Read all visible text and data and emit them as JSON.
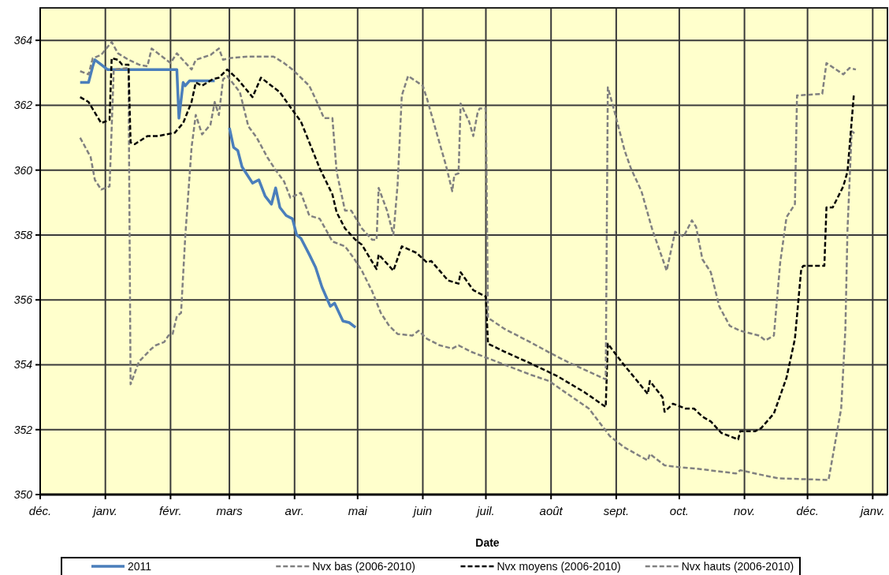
{
  "chart_data": {
    "type": "line",
    "xlabel": "Date",
    "legend": "bottom",
    "grid": true,
    "xlim": [
      "2010-12-01",
      "2012-01-08"
    ],
    "xticks": [
      {
        "value": "2010-12-01",
        "label": "déc."
      },
      {
        "value": "2011-01-01",
        "label": "janv."
      },
      {
        "value": "2011-02-01",
        "label": "févr."
      },
      {
        "value": "2011-03-01",
        "label": "mars"
      },
      {
        "value": "2011-04-01",
        "label": "avr."
      },
      {
        "value": "2011-05-01",
        "label": "mai"
      },
      {
        "value": "2011-06-01",
        "label": "juin"
      },
      {
        "value": "2011-07-01",
        "label": "juil."
      },
      {
        "value": "2011-08-01",
        "label": "août"
      },
      {
        "value": "2011-09-01",
        "label": "sept."
      },
      {
        "value": "2011-10-01",
        "label": "oct."
      },
      {
        "value": "2011-11-01",
        "label": "nov."
      },
      {
        "value": "2011-12-01",
        "label": "déc."
      },
      {
        "value": "2012-01-01",
        "label": "janv."
      }
    ],
    "ylim": [
      350,
      365
    ],
    "yticks": [
      350,
      352,
      354,
      356,
      358,
      360,
      362,
      364
    ],
    "series": [
      {
        "name": "2011",
        "color": "#4a7ebb",
        "line_style": "solid",
        "x": [
          "2010-12-20",
          "2010-12-24",
          "2010-12-26",
          "2010-12-27",
          "2010-12-30",
          "2011-01-02",
          "2011-02-04",
          "2011-02-05",
          "2011-02-07",
          "2011-02-08",
          "2011-02-10",
          "2011-02-22",
          "2011-02-25",
          "2011-03-01",
          "2011-03-03",
          "2011-03-05",
          "2011-03-07",
          "2011-03-09",
          "2011-03-12",
          "2011-03-15",
          "2011-03-18",
          "2011-03-21",
          "2011-03-23",
          "2011-03-25",
          "2011-03-28",
          "2011-03-31",
          "2011-04-02",
          "2011-04-04",
          "2011-04-08",
          "2011-04-11",
          "2011-04-14",
          "2011-04-18",
          "2011-04-20",
          "2011-04-24",
          "2011-04-27",
          "2011-04-30"
        ],
        "values": [
          362.7,
          362.7,
          363.2,
          363.4,
          363.25,
          363.1,
          363.1,
          361.6,
          362.7,
          362.6,
          362.75,
          362.75,
          null,
          361.3,
          360.7,
          360.6,
          360.1,
          359.9,
          359.6,
          359.7,
          359.2,
          358.95,
          359.45,
          358.85,
          358.6,
          358.5,
          358.0,
          357.9,
          357.4,
          357.0,
          356.4,
          355.8,
          355.9,
          355.35,
          355.3,
          355.15
        ]
      },
      {
        "name": "Nvx bas (2006-2010)",
        "color": "#808080",
        "line_style": "dashed",
        "x": [
          "2010-12-20",
          "2010-12-25",
          "2010-12-27",
          "2010-12-30",
          "2011-01-03",
          "2011-01-05",
          "2011-01-12",
          "2011-01-13",
          "2011-01-17",
          "2011-01-23",
          "2011-01-25",
          "2011-01-29",
          "2011-01-31",
          "2011-02-02",
          "2011-02-04",
          "2011-02-06",
          "2011-02-08",
          "2011-02-11",
          "2011-02-13",
          "2011-02-16",
          "2011-02-20",
          "2011-02-22",
          "2011-02-24",
          "2011-02-26",
          "2011-02-28",
          "2011-03-06",
          "2011-03-10",
          "2011-03-14",
          "2011-03-19",
          "2011-03-23",
          "2011-03-27",
          "2011-03-30",
          "2011-04-04",
          "2011-04-08",
          "2011-04-13",
          "2011-04-19",
          "2011-04-25",
          "2011-04-29",
          "2011-05-03",
          "2011-05-08",
          "2011-05-12",
          "2011-05-16",
          "2011-05-20",
          "2011-05-27",
          "2011-05-30",
          "2011-06-03",
          "2011-06-09",
          "2011-06-15",
          "2011-06-18",
          "2011-06-24",
          "2011-07-02",
          "2011-07-10",
          "2011-07-22",
          "2011-07-31",
          "2011-08-10",
          "2011-08-19",
          "2011-08-29",
          "2011-09-05",
          "2011-09-16",
          "2011-09-17",
          "2011-09-24",
          "2011-09-30",
          "2011-10-09",
          "2011-10-28",
          "2011-10-30",
          "2011-11-06",
          "2011-11-17",
          "2011-12-11",
          "2011-12-17",
          "2011-12-19",
          "2011-12-20",
          "2011-12-22",
          "2011-12-24"
        ],
        "values": [
          361.0,
          360.4,
          359.7,
          359.4,
          359.5,
          363.1,
          363.15,
          353.4,
          354.1,
          354.5,
          354.6,
          354.7,
          354.9,
          354.95,
          355.5,
          355.6,
          357.95,
          360.7,
          361.7,
          361.1,
          361.4,
          362.1,
          361.7,
          362.8,
          362.9,
          362.4,
          361.35,
          361.0,
          360.4,
          360.0,
          359.65,
          359.15,
          359.3,
          358.6,
          358.5,
          357.8,
          357.65,
          357.3,
          356.9,
          356.25,
          355.6,
          355.2,
          354.95,
          354.9,
          355.05,
          354.8,
          354.6,
          354.5,
          354.6,
          354.4,
          354.2,
          354.0,
          353.7,
          353.5,
          353.05,
          352.65,
          351.8,
          351.45,
          351.05,
          351.25,
          350.9,
          350.85,
          350.8,
          350.65,
          350.75,
          350.65,
          350.5,
          350.45,
          352.65,
          355.1,
          358.15,
          361.2,
          361.1
        ]
      },
      {
        "name": "Nvx moyens (2006-2010)",
        "color": "#000000",
        "line_style": "dashed",
        "x": [
          "2010-12-20",
          "2010-12-24",
          "2010-12-30",
          "2011-01-03",
          "2011-01-04",
          "2011-01-07",
          "2011-01-09",
          "2011-01-12",
          "2011-01-13",
          "2011-01-15",
          "2011-01-21",
          "2011-01-26",
          "2011-02-03",
          "2011-02-07",
          "2011-02-11",
          "2011-02-13",
          "2011-02-16",
          "2011-02-21",
          "2011-02-24",
          "2011-02-28",
          "2011-03-05",
          "2011-03-12",
          "2011-03-16",
          "2011-03-20",
          "2011-03-25",
          "2011-03-31",
          "2011-04-04",
          "2011-04-13",
          "2011-04-19",
          "2011-04-21",
          "2011-04-25",
          "2011-04-30",
          "2011-05-03",
          "2011-05-10",
          "2011-05-11",
          "2011-05-18",
          "2011-05-22",
          "2011-05-29",
          "2011-06-03",
          "2011-06-05",
          "2011-06-13",
          "2011-06-18",
          "2011-06-19",
          "2011-06-25",
          "2011-07-01",
          "2011-07-02",
          "2011-07-10",
          "2011-07-22",
          "2011-08-04",
          "2011-08-17",
          "2011-08-27",
          "2011-08-28",
          "2011-09-04",
          "2011-09-11",
          "2011-09-16",
          "2011-09-17",
          "2011-09-23",
          "2011-09-24",
          "2011-09-28",
          "2011-10-04",
          "2011-10-08",
          "2011-10-12",
          "2011-10-16",
          "2011-10-21",
          "2011-10-29",
          "2011-10-30",
          "2011-11-06",
          "2011-11-09",
          "2011-11-15",
          "2011-11-21",
          "2011-11-25",
          "2011-11-28",
          "2011-11-29",
          "2011-12-09",
          "2011-12-10",
          "2011-12-13",
          "2011-12-18",
          "2011-12-20",
          "2011-12-23"
        ],
        "values": [
          362.25,
          362.1,
          361.45,
          361.55,
          363.45,
          363.4,
          363.25,
          363.25,
          360.85,
          360.8,
          361.05,
          361.05,
          361.15,
          361.45,
          362.1,
          362.7,
          362.6,
          362.8,
          362.85,
          363.1,
          362.8,
          362.25,
          362.85,
          362.65,
          362.4,
          361.85,
          361.5,
          360.05,
          359.25,
          358.7,
          358.2,
          357.85,
          357.7,
          356.95,
          357.4,
          356.9,
          357.65,
          357.45,
          357.15,
          357.2,
          356.6,
          356.5,
          356.85,
          356.3,
          356.1,
          354.65,
          354.4,
          354.05,
          353.65,
          353.15,
          352.7,
          354.65,
          354.05,
          353.5,
          353.1,
          353.5,
          353.0,
          352.55,
          352.8,
          352.65,
          352.65,
          352.4,
          352.25,
          351.9,
          351.7,
          351.95,
          351.95,
          352.05,
          352.5,
          353.6,
          354.8,
          356.95,
          357.05,
          357.05,
          358.85,
          358.85,
          359.5,
          359.95,
          362.3
        ]
      },
      {
        "name": "Nvx hauts (2006-2010)",
        "color": "#808080",
        "line_style": "dashed",
        "x": [
          "2010-12-20",
          "2010-12-24",
          "2010-12-26",
          "2010-12-30",
          "2011-01-04",
          "2011-01-07",
          "2011-01-12",
          "2011-01-17",
          "2011-01-21",
          "2011-01-23",
          "2011-01-27",
          "2011-02-01",
          "2011-02-04",
          "2011-02-11",
          "2011-02-13",
          "2011-02-20",
          "2011-02-24",
          "2011-02-26",
          "2011-03-01",
          "2011-03-10",
          "2011-03-22",
          "2011-03-27",
          "2011-03-31",
          "2011-04-08",
          "2011-04-12",
          "2011-04-15",
          "2011-04-19",
          "2011-04-21",
          "2011-04-25",
          "2011-04-28",
          "2011-05-03",
          "2011-05-08",
          "2011-05-10",
          "2011-05-11",
          "2011-05-15",
          "2011-05-18",
          "2011-05-20",
          "2011-05-22",
          "2011-05-25",
          "2011-06-01",
          "2011-06-03",
          "2011-06-08",
          "2011-06-12",
          "2011-06-15",
          "2011-06-16",
          "2011-06-18",
          "2011-06-19",
          "2011-06-23",
          "2011-06-25",
          "2011-06-27",
          "2011-06-28",
          "2011-07-01",
          "2011-07-02",
          "2011-07-10",
          "2011-07-16",
          "2011-07-22",
          "2011-08-01",
          "2011-08-10",
          "2011-08-22",
          "2011-08-27",
          "2011-08-28",
          "2011-08-31",
          "2011-09-05",
          "2011-09-08",
          "2011-09-13",
          "2011-09-18",
          "2011-09-25",
          "2011-09-29",
          "2011-10-03",
          "2011-10-07",
          "2011-10-09",
          "2011-10-12",
          "2011-10-16",
          "2011-10-20",
          "2011-10-25",
          "2011-10-30",
          "2011-11-08",
          "2011-11-11",
          "2011-11-15",
          "2011-11-18",
          "2011-11-21",
          "2011-11-25",
          "2011-11-26",
          "2011-12-08",
          "2011-12-10",
          "2011-12-18",
          "2011-12-21",
          "2011-12-24"
        ],
        "values": [
          363.05,
          362.95,
          363.45,
          363.55,
          363.95,
          363.6,
          363.4,
          363.25,
          363.2,
          363.75,
          363.55,
          363.3,
          363.6,
          363.1,
          363.4,
          363.55,
          363.75,
          363.4,
          363.45,
          363.5,
          363.5,
          363.3,
          363.1,
          362.6,
          362.05,
          361.6,
          361.6,
          359.95,
          358.75,
          358.75,
          358.2,
          357.85,
          357.85,
          359.45,
          358.75,
          358.0,
          359.55,
          362.3,
          362.9,
          362.6,
          362.2,
          361.05,
          360.15,
          359.35,
          359.85,
          359.9,
          362.05,
          361.5,
          361.05,
          361.75,
          361.9,
          361.9,
          355.45,
          355.1,
          354.9,
          354.7,
          354.35,
          354.05,
          353.7,
          353.55,
          362.55,
          361.85,
          360.6,
          360.05,
          359.35,
          358.2,
          356.9,
          358.1,
          357.95,
          358.45,
          358.25,
          357.25,
          356.85,
          355.8,
          355.2,
          355.05,
          354.9,
          354.75,
          354.9,
          357.15,
          358.55,
          358.95,
          362.3,
          362.35,
          363.3,
          362.95,
          363.15,
          363.1
        ]
      }
    ]
  }
}
